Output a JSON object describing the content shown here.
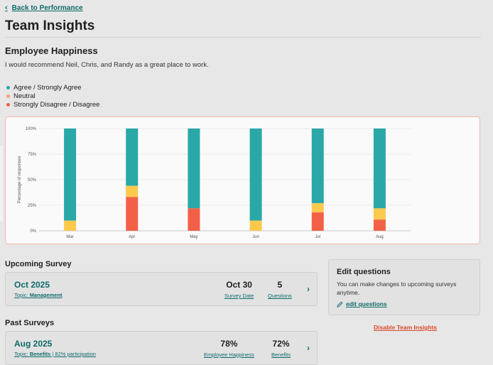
{
  "nav": {
    "back_label": "Back to Performance"
  },
  "page": {
    "title": "Team Insights"
  },
  "happiness": {
    "title": "Employee Happiness",
    "question": "I would recommend Neil, Chris, and Randy as a great place to work.",
    "legend": [
      {
        "label": "Agree / Strongly Agree",
        "color": "#2aa8a8"
      },
      {
        "label": "Neutral",
        "color": "#f0a07a"
      },
      {
        "label": "Strongly Disagree / Disagree",
        "color": "#f26147"
      }
    ]
  },
  "chart_data": {
    "type": "bar",
    "stacked": true,
    "categories": [
      "Mar",
      "Apr",
      "May",
      "Jun",
      "Jul",
      "Aug"
    ],
    "series": [
      {
        "name": "Strongly Disagree / Disagree",
        "color": "#f26147",
        "values": [
          0,
          33,
          22,
          0,
          18,
          11
        ]
      },
      {
        "name": "Neutral",
        "color": "#fdc94d",
        "values": [
          10,
          11,
          0,
          10,
          9,
          11
        ]
      },
      {
        "name": "Agree / Strongly Agree",
        "color": "#2aa8a8",
        "values": [
          90,
          56,
          78,
          90,
          73,
          78
        ]
      }
    ],
    "yticks": [
      "0%",
      "25%",
      "50%",
      "75%",
      "100%"
    ],
    "ylabel": "Percentage of responses",
    "xlabel": "",
    "ylim": [
      0,
      100
    ],
    "grid": true
  },
  "upcoming": {
    "section_title": "Upcoming Survey",
    "date": "Oct 2025",
    "topic_prefix": "Topic: ",
    "topic": "Management",
    "stat1_value": "Oct 30",
    "stat1_label": "Survey Date",
    "stat2_value": "5",
    "stat2_label": "Questions"
  },
  "edit": {
    "title": "Edit questions",
    "description": "You can make changes to upcoming surveys anytime.",
    "link_label": "edit questions"
  },
  "disable_label": "Disable Team Insights",
  "past": {
    "section_title": "Past Surveys",
    "date": "Aug 2025",
    "topic_prefix": "Topic: ",
    "topic": "Benefits",
    "participation": " | 82% participation",
    "stat1_value": "78%",
    "stat1_label": "Employee Happiness",
    "stat2_value": "72%",
    "stat2_label": "Benefits"
  }
}
